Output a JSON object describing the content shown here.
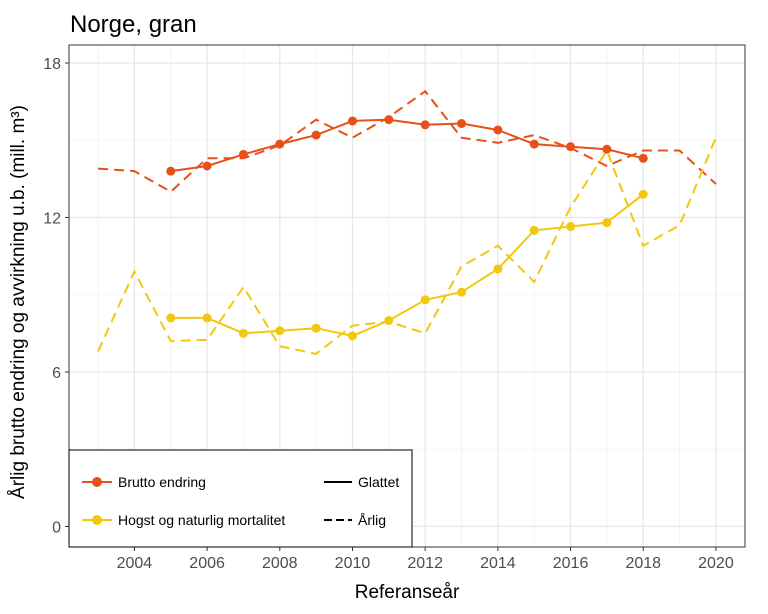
{
  "chart_data": {
    "type": "line",
    "title": "Norge, gran",
    "xlabel": "Referanseår",
    "ylabel": "Årlig brutto endring og avvirkning u.b. (mill. m³)",
    "xlim": [
      2002.2,
      2020.8
    ],
    "ylim": [
      -0.8,
      18.7
    ],
    "x_ticks": [
      2004,
      2006,
      2008,
      2010,
      2012,
      2014,
      2016,
      2018,
      2020
    ],
    "y_ticks": [
      0,
      6,
      12,
      18
    ],
    "grid": true,
    "legend_position": "bottom-left",
    "series": [
      {
        "name": "Brutto endring",
        "color": "#e8501a",
        "smoothed": {
          "x": [
            2005,
            2006,
            2007,
            2008,
            2009,
            2010,
            2011,
            2012,
            2013,
            2014,
            2015,
            2016,
            2017,
            2018
          ],
          "y": [
            13.8,
            14.0,
            14.45,
            14.85,
            15.2,
            15.75,
            15.8,
            15.6,
            15.65,
            15.4,
            14.85,
            14.75,
            14.65,
            14.3
          ]
        },
        "annual": {
          "x": [
            2003,
            2004,
            2005,
            2006,
            2007,
            2008,
            2009,
            2010,
            2011,
            2012,
            2013,
            2014,
            2015,
            2016,
            2017,
            2018,
            2019,
            2020
          ],
          "y": [
            13.9,
            13.8,
            13.0,
            14.3,
            14.3,
            14.8,
            15.8,
            15.1,
            15.9,
            16.9,
            15.1,
            14.9,
            15.2,
            14.7,
            14.0,
            14.6,
            14.6,
            13.3
          ]
        }
      },
      {
        "name": "Hogst og naturlig mortalitet",
        "color": "#f2c80f",
        "smoothed": {
          "x": [
            2005,
            2006,
            2007,
            2008,
            2009,
            2010,
            2011,
            2012,
            2013,
            2014,
            2015,
            2016,
            2017,
            2018
          ],
          "y": [
            8.1,
            8.1,
            7.5,
            7.6,
            7.7,
            7.4,
            8.0,
            8.8,
            9.1,
            10.0,
            11.5,
            11.65,
            11.8,
            12.9
          ]
        },
        "annual": {
          "x": [
            2003,
            2004,
            2005,
            2006,
            2007,
            2008,
            2009,
            2010,
            2011,
            2012,
            2013,
            2014,
            2015,
            2016,
            2017,
            2018,
            2019,
            2020
          ],
          "y": [
            6.8,
            9.9,
            7.2,
            7.25,
            9.3,
            7.0,
            6.7,
            7.8,
            7.95,
            7.5,
            10.1,
            10.9,
            9.5,
            12.4,
            14.6,
            10.9,
            11.7,
            15.1
          ]
        }
      }
    ],
    "legend": {
      "series_entries": [
        "Brutto endring",
        "Hogst og naturlig mortalitet"
      ],
      "linetype_entries": [
        "Glattet",
        "Årlig"
      ]
    }
  }
}
